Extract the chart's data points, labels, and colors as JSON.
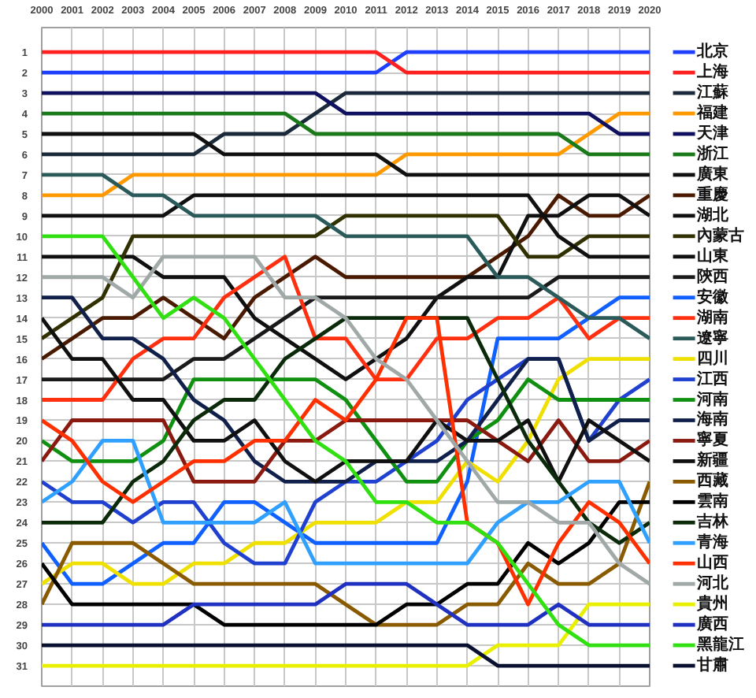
{
  "chart_data": {
    "type": "line",
    "x": [
      2000,
      2001,
      2002,
      2003,
      2004,
      2005,
      2006,
      2007,
      2008,
      2009,
      2010,
      2011,
      2012,
      2013,
      2014,
      2015,
      2016,
      2017,
      2018,
      2019,
      2020
    ],
    "xlim": [
      2000,
      2020
    ],
    "xticks": [
      2000,
      2001,
      2002,
      2003,
      2004,
      2005,
      2006,
      2007,
      2008,
      2009,
      2010,
      2011,
      2012,
      2013,
      2014,
      2015,
      2016,
      2017,
      2018,
      2019,
      2020
    ],
    "ylim": [
      32,
      -0.2
    ],
    "yticks": [
      1,
      2,
      3,
      4,
      5,
      6,
      7,
      8,
      9,
      10,
      11,
      12,
      13,
      14,
      15,
      16,
      17,
      18,
      19,
      20,
      21,
      22,
      23,
      24,
      25,
      26,
      27,
      28,
      29,
      30,
      31
    ],
    "grid": true,
    "legend": "right",
    "line_style": "solid",
    "series": [
      {
        "name": "北京",
        "color": "#1f3fff",
        "values": [
          2,
          2,
          2,
          2,
          2,
          2,
          2,
          2,
          2,
          2,
          2,
          2,
          1,
          1,
          1,
          1,
          1,
          1,
          1,
          1,
          1
        ]
      },
      {
        "name": "上海",
        "color": "#ff2020",
        "values": [
          1,
          1,
          1,
          1,
          1,
          1,
          1,
          1,
          1,
          1,
          1,
          1,
          2,
          2,
          2,
          2,
          2,
          2,
          2,
          2,
          2
        ]
      },
      {
        "name": "江蘇",
        "color": "#1a2a3a",
        "values": [
          6,
          6,
          6,
          6,
          6,
          6,
          5,
          5,
          5,
          4,
          3,
          3,
          3,
          3,
          3,
          3,
          3,
          3,
          3,
          3,
          3
        ]
      },
      {
        "name": "福建",
        "color": "#ff9900",
        "values": [
          8,
          8,
          8,
          7,
          7,
          7,
          7,
          7,
          7,
          7,
          7,
          7,
          6,
          6,
          6,
          6,
          6,
          6,
          5,
          4,
          4
        ]
      },
      {
        "name": "天津",
        "color": "#101060",
        "values": [
          3,
          3,
          3,
          3,
          3,
          3,
          3,
          3,
          3,
          3,
          4,
          4,
          4,
          4,
          4,
          4,
          4,
          4,
          4,
          5,
          5
        ]
      },
      {
        "name": "浙江",
        "color": "#1a7a1a",
        "values": [
          4,
          4,
          4,
          4,
          4,
          4,
          4,
          4,
          4,
          5,
          5,
          5,
          5,
          5,
          5,
          5,
          5,
          5,
          6,
          6,
          6
        ]
      },
      {
        "name": "廣東",
        "color": "#101010",
        "values": [
          5,
          5,
          5,
          5,
          5,
          5,
          6,
          6,
          6,
          6,
          6,
          6,
          7,
          7,
          7,
          7,
          7,
          7,
          7,
          7,
          7
        ]
      },
      {
        "name": "重慶",
        "color": "#4a1a00",
        "values": [
          16,
          15,
          14,
          14,
          13,
          14,
          15,
          13,
          12,
          11,
          12,
          12,
          12,
          12,
          12,
          11,
          10,
          8,
          9,
          9,
          8
        ]
      },
      {
        "name": "湖北",
        "color": "#101010",
        "values": [
          11,
          11,
          11,
          11,
          12,
          12,
          12,
          14,
          15,
          16,
          17,
          16,
          15,
          13,
          12,
          12,
          9,
          9,
          8,
          8,
          9
        ]
      },
      {
        "name": "內蒙古",
        "color": "#303000",
        "values": [
          15,
          14,
          13,
          10,
          10,
          10,
          10,
          10,
          10,
          10,
          9,
          9,
          9,
          9,
          9,
          9,
          11,
          11,
          10,
          10,
          10
        ]
      },
      {
        "name": "山東",
        "color": "#101010",
        "values": [
          9,
          9,
          9,
          9,
          9,
          8,
          8,
          8,
          8,
          8,
          8,
          8,
          8,
          8,
          8,
          8,
          8,
          10,
          11,
          11,
          11
        ]
      },
      {
        "name": "陝西",
        "color": "#1a1a1a",
        "values": [
          17,
          17,
          17,
          17,
          17,
          16,
          16,
          15,
          14,
          13,
          13,
          13,
          13,
          13,
          13,
          13,
          13,
          12,
          12,
          12,
          12
        ]
      },
      {
        "name": "安徽",
        "color": "#1060ff",
        "values": [
          25,
          27,
          27,
          26,
          25,
          25,
          23,
          23,
          24,
          25,
          25,
          25,
          25,
          25,
          22,
          15,
          15,
          15,
          14,
          13,
          13
        ]
      },
      {
        "name": "湖南",
        "color": "#ff3010",
        "values": [
          18,
          18,
          18,
          16,
          15,
          15,
          13,
          12,
          11,
          15,
          15,
          17,
          17,
          15,
          15,
          14,
          14,
          13,
          15,
          14,
          14
        ]
      },
      {
        "name": "遼寧",
        "color": "#2a5a5a",
        "values": [
          7,
          7,
          7,
          8,
          8,
          9,
          9,
          9,
          9,
          9,
          10,
          10,
          10,
          10,
          10,
          12,
          12,
          13,
          14,
          14,
          15
        ]
      },
      {
        "name": "四川",
        "color": "#f0e000",
        "values": [
          27,
          26,
          26,
          27,
          27,
          26,
          26,
          25,
          25,
          24,
          24,
          24,
          23,
          23,
          21,
          22,
          20,
          17,
          16,
          16,
          16
        ]
      },
      {
        "name": "江西",
        "color": "#2040d0",
        "values": [
          22,
          23,
          23,
          24,
          23,
          23,
          25,
          26,
          26,
          23,
          22,
          22,
          21,
          20,
          18,
          17,
          16,
          16,
          20,
          18,
          17
        ]
      },
      {
        "name": "河南",
        "color": "#109010",
        "values": [
          20,
          21,
          21,
          21,
          20,
          17,
          17,
          17,
          17,
          17,
          18,
          20,
          22,
          22,
          20,
          19,
          17,
          18,
          18,
          18,
          18
        ]
      },
      {
        "name": "海南",
        "color": "#10204a",
        "values": [
          13,
          13,
          15,
          15,
          16,
          18,
          19,
          21,
          22,
          22,
          22,
          21,
          21,
          21,
          20,
          18,
          16,
          16,
          20,
          19,
          19
        ]
      },
      {
        "name": "寧夏",
        "color": "#8a1a10",
        "values": [
          21,
          19,
          19,
          19,
          19,
          22,
          22,
          22,
          20,
          20,
          19,
          19,
          19,
          19,
          19,
          20,
          21,
          19,
          21,
          21,
          20
        ]
      },
      {
        "name": "新疆",
        "color": "#101010",
        "values": [
          14,
          16,
          16,
          18,
          18,
          20,
          20,
          19,
          21,
          22,
          21,
          21,
          21,
          19,
          20,
          20,
          19,
          22,
          19,
          20,
          21
        ]
      },
      {
        "name": "西藏",
        "color": "#8a5a00",
        "values": [
          28,
          25,
          25,
          25,
          26,
          27,
          27,
          27,
          27,
          27,
          28,
          29,
          29,
          29,
          28,
          28,
          26,
          27,
          27,
          26,
          22
        ]
      },
      {
        "name": "雲南",
        "color": "#000000",
        "values": [
          26,
          28,
          28,
          28,
          28,
          28,
          29,
          29,
          29,
          29,
          29,
          29,
          28,
          28,
          27,
          27,
          25,
          26,
          25,
          23,
          23
        ]
      },
      {
        "name": "吉林",
        "color": "#0a2a0a",
        "values": [
          24,
          24,
          24,
          22,
          21,
          19,
          18,
          18,
          16,
          15,
          14,
          14,
          14,
          14,
          14,
          17,
          20,
          22,
          24,
          25,
          24
        ]
      },
      {
        "name": "青海",
        "color": "#30a0ff",
        "values": [
          23,
          22,
          20,
          20,
          24,
          24,
          24,
          24,
          23,
          26,
          26,
          26,
          26,
          26,
          26,
          24,
          23,
          23,
          22,
          22,
          25
        ]
      },
      {
        "name": "山西",
        "color": "#ff3000",
        "values": [
          19,
          20,
          22,
          23,
          22,
          21,
          21,
          20,
          20,
          18,
          19,
          17,
          14,
          14,
          24,
          25,
          28,
          25,
          23,
          24,
          26
        ]
      },
      {
        "name": "河北",
        "color": "#a0a8a8",
        "values": [
          12,
          12,
          12,
          13,
          11,
          11,
          11,
          11,
          13,
          13,
          14,
          16,
          17,
          19,
          21,
          23,
          23,
          24,
          24,
          26,
          27
        ]
      },
      {
        "name": "貴州",
        "color": "#e8f000",
        "values": [
          31,
          31,
          31,
          31,
          31,
          31,
          31,
          31,
          31,
          31,
          31,
          31,
          31,
          31,
          31,
          30,
          30,
          30,
          28,
          28,
          28
        ]
      },
      {
        "name": "廣西",
        "color": "#2030c0",
        "values": [
          29,
          29,
          29,
          29,
          29,
          28,
          28,
          28,
          28,
          28,
          27,
          27,
          27,
          28,
          29,
          29,
          29,
          28,
          29,
          29,
          29
        ]
      },
      {
        "name": "黑龍江",
        "color": "#30e010",
        "values": [
          10,
          10,
          10,
          12,
          14,
          13,
          14,
          16,
          18,
          20,
          21,
          23,
          23,
          24,
          24,
          25,
          27,
          29,
          30,
          30,
          30
        ]
      },
      {
        "name": "甘肅",
        "color": "#0a1030",
        "values": [
          30,
          30,
          30,
          30,
          30,
          30,
          30,
          30,
          30,
          30,
          30,
          30,
          30,
          30,
          30,
          31,
          31,
          31,
          31,
          31,
          31
        ]
      }
    ]
  }
}
